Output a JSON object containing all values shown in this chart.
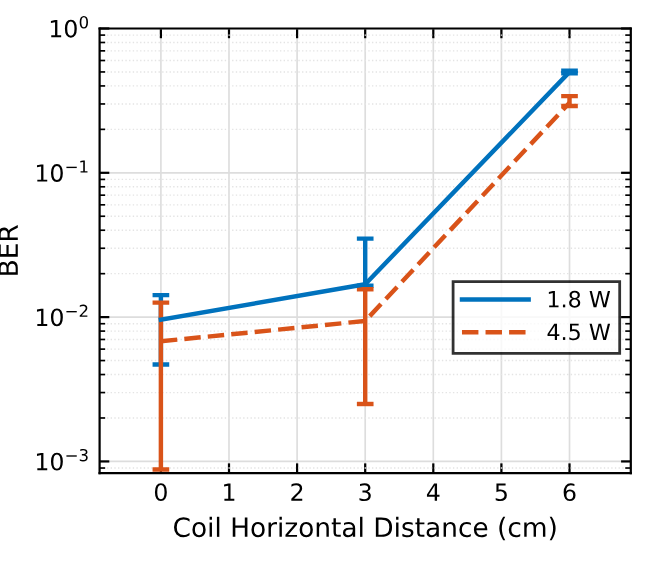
{
  "chart_data": {
    "type": "line",
    "xlabel": "Coil Horizontal Distance (cm)",
    "ylabel": "BER",
    "x": [
      0,
      3,
      6
    ],
    "xlim": [
      -0.9,
      6.9
    ],
    "xticks": [
      0,
      1,
      2,
      3,
      4,
      5,
      6
    ],
    "ylim": [
      0.00083,
      1
    ],
    "yticks": [
      {
        "value": 0.001,
        "label": "10$^{−3}$"
      },
      {
        "value": 0.01,
        "label": "10$^{−2}$"
      },
      {
        "value": 0.1,
        "label": "10$^{−1}$"
      },
      {
        "value": 1,
        "label": "10$^{0}$"
      }
    ],
    "log": "y",
    "grid": true,
    "legend": "right",
    "series": [
      {
        "name": "1.8 W",
        "color": "#0072bd",
        "line_style": "solid",
        "values": [
          0.0096,
          0.0169,
          0.5
        ],
        "errors": [
          [
            0.0047,
            0.0142
          ],
          [
            0.0165,
            0.035
          ],
          [
            0.49,
            0.51
          ]
        ]
      },
      {
        "name": "4.5 W",
        "color": "#d95319",
        "line_style": "dashed",
        "values": [
          0.0068,
          0.0094,
          0.306
        ],
        "errors": [
          [
            0.00088,
            0.0126
          ],
          [
            0.0025,
            0.0156
          ],
          [
            0.29,
            0.34
          ]
        ]
      }
    ]
  }
}
